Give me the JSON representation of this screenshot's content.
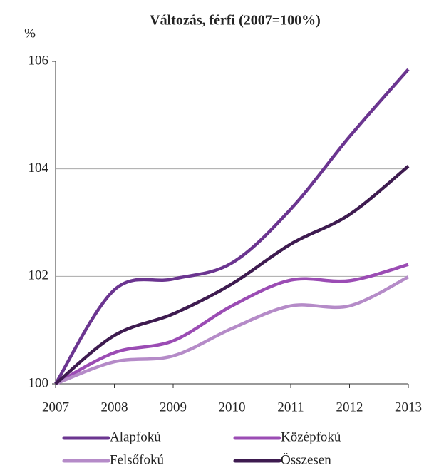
{
  "chart_data": {
    "type": "line",
    "title": "Változás, férfi (2007=100%)",
    "y_label": "%",
    "x": [
      2007,
      2008,
      2009,
      2010,
      2011,
      2012,
      2013
    ],
    "xlim": [
      2007,
      2013
    ],
    "xticks": [
      2007,
      2008,
      2009,
      2010,
      2011,
      2012,
      2013
    ],
    "ylim": [
      100,
      106
    ],
    "yticks": [
      100,
      102,
      104,
      106
    ],
    "grid": true,
    "series": [
      {
        "name": "Alapfokú",
        "color": "#6b3590",
        "values": [
          100,
          101.75,
          101.95,
          102.25,
          103.25,
          104.6,
          105.85
        ]
      },
      {
        "name": "Középfokú",
        "color": "#9b4cb4",
        "values": [
          100,
          100.58,
          100.8,
          101.45,
          101.93,
          101.92,
          102.22
        ]
      },
      {
        "name": "Felsőfokú",
        "color": "#b58bc8",
        "values": [
          100,
          100.41,
          100.52,
          101.03,
          101.45,
          101.45,
          101.99
        ]
      },
      {
        "name": "Összesen",
        "color": "#3e1b50",
        "values": [
          100,
          100.9,
          101.3,
          101.86,
          102.6,
          103.15,
          104.05
        ]
      }
    ]
  }
}
